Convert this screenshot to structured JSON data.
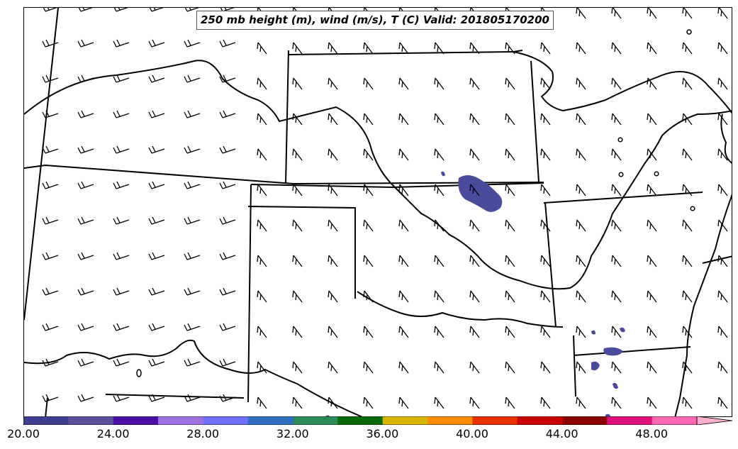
{
  "title": "250 mb height (m), wind (m/s), T (C) Valid: 201805170200",
  "colorbar": {
    "tick_labels": [
      "20.00",
      "24.00",
      "28.00",
      "32.00",
      "36.00",
      "40.00",
      "44.00",
      "48.00"
    ],
    "colors": [
      "#3f3f8f",
      "#5b4f9a",
      "#4b0fa6",
      "#a070e0",
      "#7070ff",
      "#3070c0",
      "#2e8b57",
      "#0a6a0a",
      "#d9b400",
      "#ff8c00",
      "#e83000",
      "#c80000",
      "#8b0000",
      "#e0107a",
      "#ff69b4"
    ],
    "extend_color": "#ffb0d0"
  },
  "shaded_color": "#4b4b9b",
  "calm_circles": [
    "calm-circle"
  ]
}
